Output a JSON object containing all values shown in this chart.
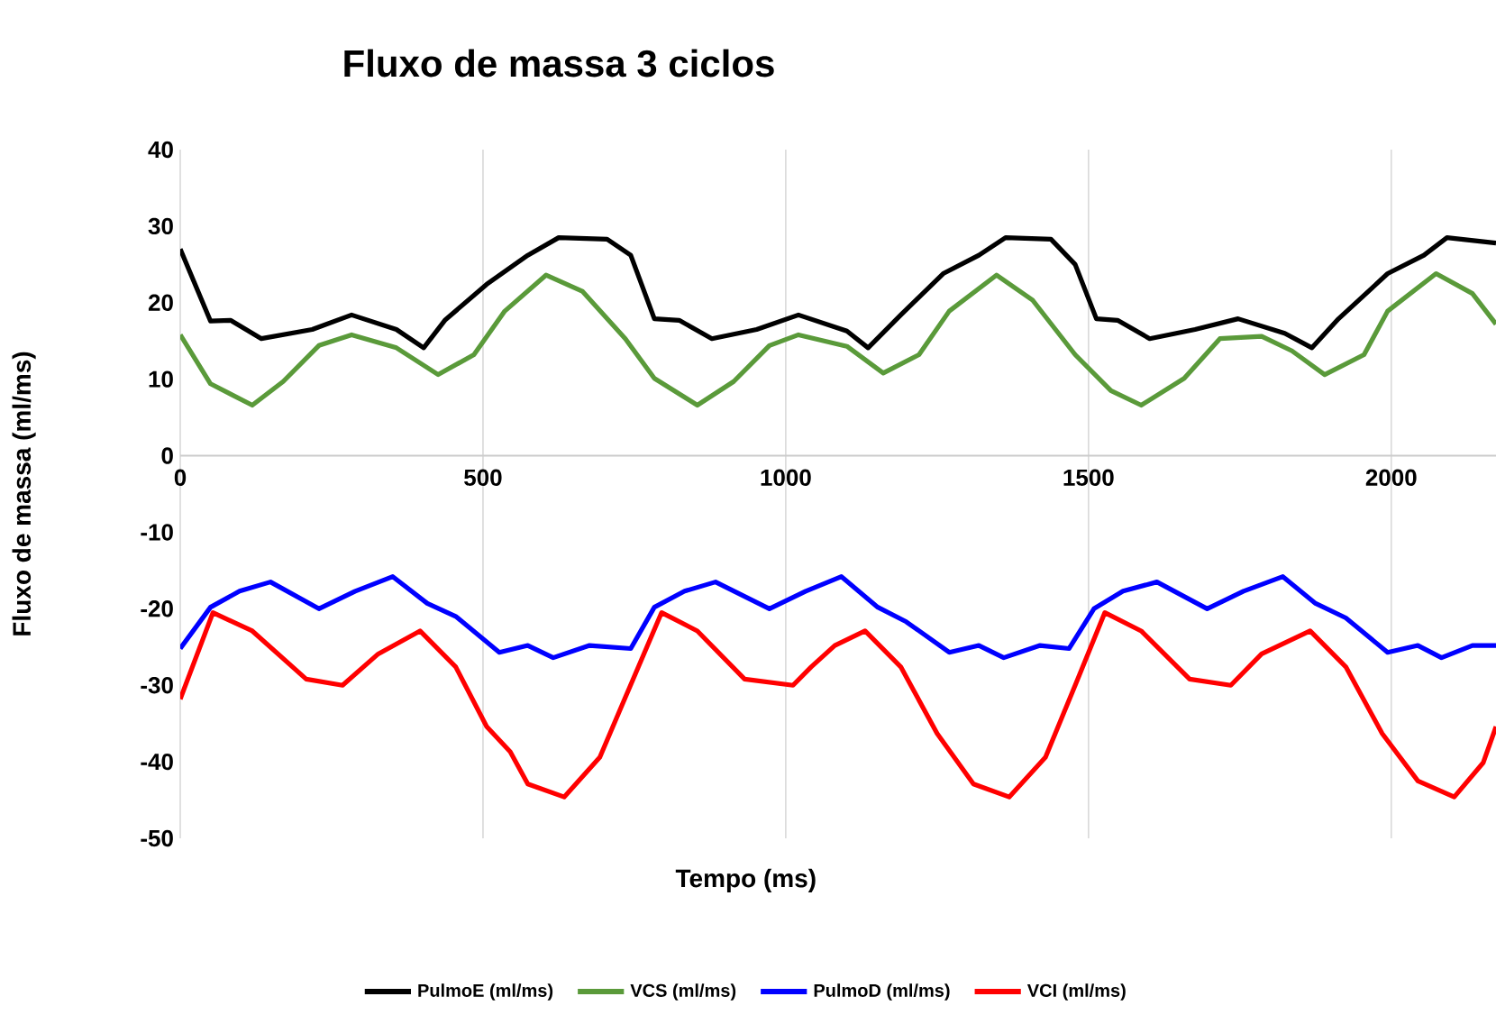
{
  "chart_data": {
    "type": "line",
    "title": "Fluxo de massa 3 ciclos",
    "xlabel": "Tempo (ms)",
    "ylabel": "Fluxo de massa (ml/ms)",
    "xlim": [
      0,
      2173
    ],
    "xticks": [
      0,
      500,
      1000,
      1500,
      2000
    ],
    "ylim": [
      -50,
      40
    ],
    "yticks": [
      -50,
      -40,
      -30,
      -20,
      -10,
      0,
      10,
      20,
      30,
      40
    ],
    "grid": "x",
    "legend": "bottom",
    "series": [
      {
        "name": "PulmoE (ml/ms)",
        "color": "#000000",
        "x": [
          0,
          50,
          83,
          134,
          218,
          283,
          357,
          402,
          437,
          506,
          574,
          625,
          705,
          744,
          783,
          824,
          878,
          952,
          1021,
          1101,
          1136,
          1190,
          1260,
          1319,
          1363,
          1438,
          1478,
          1513,
          1548,
          1601,
          1676,
          1747,
          1824,
          1869,
          1913,
          1994,
          2054,
          2092,
          2173
        ],
        "values": [
          27,
          17.6,
          17.7,
          15.3,
          16.5,
          18.4,
          16.5,
          14.1,
          17.7,
          22.4,
          26.2,
          28.5,
          28.3,
          26.2,
          17.9,
          17.7,
          15.3,
          16.5,
          18.4,
          16.3,
          14.1,
          18.4,
          23.8,
          26.2,
          28.5,
          28.3,
          25,
          17.9,
          17.7,
          15.3,
          16.5,
          17.9,
          16,
          14.1,
          17.9,
          23.8,
          26.2,
          28.5,
          27.8
        ]
      },
      {
        "name": "VCS (ml/ms)",
        "color": "#5a9a3a",
        "x": [
          0,
          50,
          119,
          170,
          229,
          283,
          357,
          426,
          485,
          536,
          604,
          664,
          735,
          783,
          854,
          914,
          973,
          1021,
          1101,
          1161,
          1220,
          1270,
          1348,
          1408,
          1478,
          1537,
          1587,
          1658,
          1717,
          1786,
          1836,
          1890,
          1955,
          1994,
          2074,
          2134,
          2173
        ],
        "values": [
          15.8,
          9.4,
          6.6,
          9.7,
          14.4,
          15.8,
          14.1,
          10.6,
          13.2,
          18.9,
          23.6,
          21.5,
          15.3,
          10.1,
          6.6,
          9.7,
          14.4,
          15.8,
          14.3,
          10.8,
          13.2,
          18.9,
          23.6,
          20.3,
          13.2,
          8.5,
          6.6,
          10.1,
          15.3,
          15.6,
          13.7,
          10.6,
          13.2,
          18.9,
          23.8,
          21.2,
          17.2
        ]
      },
      {
        "name": "PulmoD (ml/ms)",
        "color": "#0000ff",
        "x": [
          0,
          50,
          98,
          149,
          229,
          289,
          351,
          408,
          455,
          527,
          574,
          616,
          676,
          744,
          783,
          833,
          884,
          973,
          1033,
          1092,
          1152,
          1199,
          1270,
          1319,
          1360,
          1420,
          1468,
          1509,
          1557,
          1613,
          1696,
          1756,
          1821,
          1875,
          1925,
          1994,
          2044,
          2083,
          2134,
          2173
        ],
        "values": [
          -25.2,
          -19.8,
          -17.7,
          -16.5,
          -20,
          -17.7,
          -15.8,
          -19.3,
          -21,
          -25.7,
          -24.8,
          -26.4,
          -24.8,
          -25.2,
          -19.8,
          -17.7,
          -16.5,
          -20,
          -17.7,
          -15.8,
          -19.8,
          -21.7,
          -25.7,
          -24.8,
          -26.4,
          -24.8,
          -25.2,
          -20,
          -17.7,
          -16.5,
          -20,
          -17.7,
          -15.8,
          -19.3,
          -21.2,
          -25.7,
          -24.8,
          -26.4,
          -24.8,
          -24.8
        ]
      },
      {
        "name": "VCI (ml/ms)",
        "color": "#ff0000",
        "x": [
          0,
          54,
          119,
          208,
          268,
          327,
          396,
          455,
          506,
          545,
          574,
          634,
          693,
          735,
          795,
          854,
          932,
          1012,
          1042,
          1081,
          1131,
          1190,
          1250,
          1310,
          1369,
          1429,
          1478,
          1527,
          1587,
          1667,
          1735,
          1786,
          1866,
          1925,
          1985,
          2044,
          2104,
          2152,
          2173
        ],
        "values": [
          -31.8,
          -20.5,
          -22.9,
          -29.2,
          -30,
          -25.9,
          -22.9,
          -27.6,
          -35.4,
          -38.7,
          -42.9,
          -44.6,
          -39.4,
          -31.6,
          -20.5,
          -22.9,
          -29.2,
          -30,
          -27.6,
          -24.8,
          -22.9,
          -27.6,
          -36.3,
          -42.9,
          -44.6,
          -39.4,
          -30,
          -20.5,
          -22.9,
          -29.2,
          -30,
          -25.9,
          -22.9,
          -27.6,
          -36.3,
          -42.5,
          -44.6,
          -40.1,
          -35.4
        ]
      }
    ]
  }
}
